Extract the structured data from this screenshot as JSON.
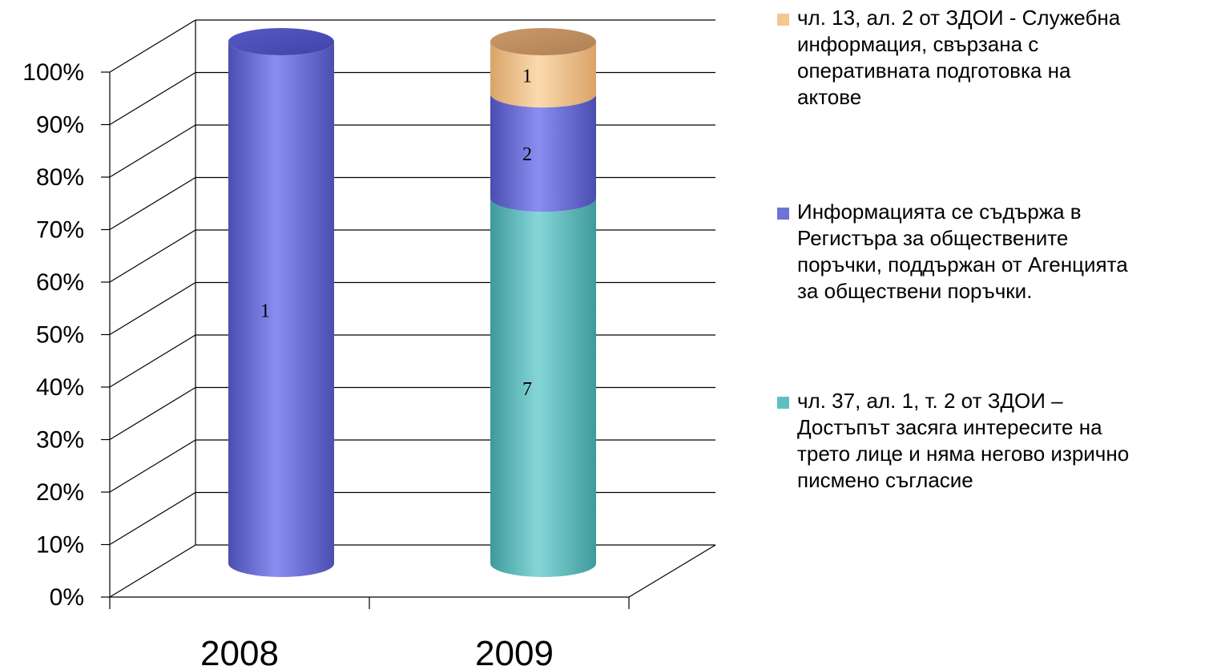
{
  "chart_data": {
    "type": "bar",
    "stacked": "percent",
    "style": "3d-cylinder",
    "categories": [
      "2008",
      "2009"
    ],
    "yticks": [
      "0%",
      "10%",
      "20%",
      "30%",
      "40%",
      "50%",
      "60%",
      "70%",
      "80%",
      "90%",
      "100%"
    ],
    "ylim": [
      0,
      100
    ],
    "grid": true,
    "legend_position": "right",
    "series": [
      {
        "name": "чл. 37, ал. 1, т. 2 от ЗДОИ – Достъпът засяга интересите на трето лице и няма негово изрично писмено съгласие",
        "values": [
          0,
          7
        ],
        "labels": [
          "",
          "7"
        ],
        "color": "#5fc0c2"
      },
      {
        "name": "Информацията се съдържа в Регистъра за обществените поръчки, поддържан от Агенцията за обществени поръчки.",
        "values": [
          1,
          2
        ],
        "labels": [
          "1",
          "2"
        ],
        "color": "#6f73d6"
      },
      {
        "name": "чл. 13, ал. 2 от ЗДОИ - Служебна информация, свързана с оперативната подготовка на актове",
        "values": [
          0,
          1
        ],
        "labels": [
          "",
          "1"
        ],
        "color": "#f4c690"
      }
    ]
  },
  "legend": {
    "items": [
      {
        "lines": [
          "чл. 13, ал. 2 от ЗДОИ - Служебна",
          "информация, свързана с",
          "оперативната подготовка на",
          "актове"
        ],
        "color": "#f4c690"
      },
      {
        "lines": [
          "Информацията се съдържа в",
          "Регистъра за обществените",
          "поръчки, поддържан от Агенцията",
          "за обществени поръчки."
        ],
        "color": "#6f73d6"
      },
      {
        "lines": [
          "чл. 37, ал. 1, т. 2 от ЗДОИ –",
          "Достъпът засяга интересите на",
          "трето лице и няма негово изрично",
          "писмено съгласие"
        ],
        "color": "#5fc0c2"
      }
    ]
  }
}
